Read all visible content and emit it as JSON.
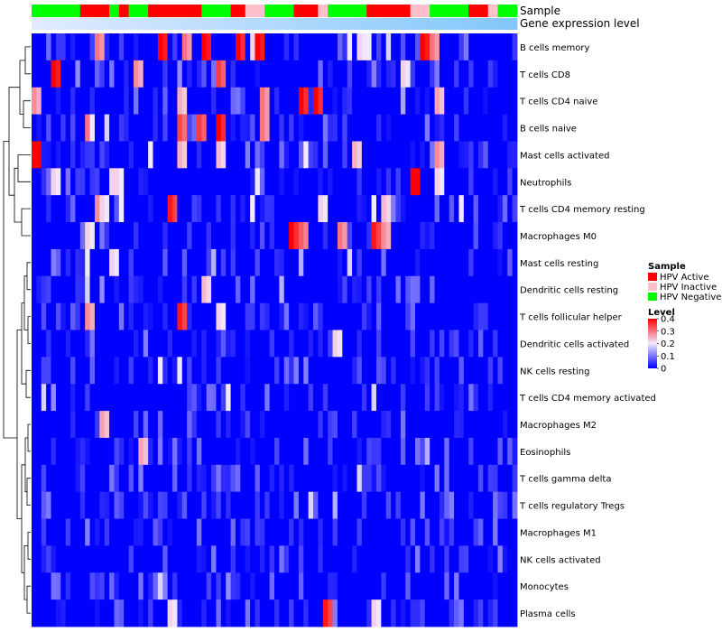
{
  "chart_data": {
    "type": "heatmap",
    "title": "",
    "annotations": {
      "sample_label": "Sample",
      "expression_label": "Gene expression level"
    },
    "sample_groups": [
      "N",
      "N",
      "N",
      "N",
      "N",
      "N",
      "N",
      "N",
      "N",
      "N",
      "A",
      "A",
      "A",
      "A",
      "A",
      "A",
      "N",
      "N",
      "A",
      "A",
      "N",
      "N",
      "N",
      "N",
      "A",
      "A",
      "A",
      "A",
      "A",
      "A",
      "A",
      "A",
      "A",
      "A",
      "A",
      "N",
      "N",
      "N",
      "N",
      "N",
      "N",
      "A",
      "A",
      "A",
      "I",
      "I",
      "I",
      "I",
      "N",
      "N",
      "N",
      "N",
      "N",
      "N",
      "A",
      "A",
      "A",
      "A",
      "A",
      "I",
      "I",
      "N",
      "N",
      "N",
      "N",
      "N",
      "N",
      "N",
      "N",
      "A",
      "A",
      "A",
      "A",
      "A",
      "A",
      "A",
      "A",
      "A",
      "I",
      "I",
      "I",
      "I",
      "N",
      "N",
      "N",
      "N",
      "N",
      "N",
      "N",
      "N",
      "A",
      "A",
      "A",
      "A",
      "I",
      "I",
      "N",
      "N",
      "N",
      "N"
    ],
    "group_colors": {
      "HPV Active": "#ff0000",
      "HPV Inactive": "#ffc0cb",
      "HPV Negative": "#00ff00"
    },
    "group_codes": {
      "A": "HPV Active",
      "I": "HPV Inactive",
      "N": "HPV Negative"
    },
    "rows": [
      "B cells memory",
      "T cells CD8",
      "T cells CD4 naive",
      "B cells naive",
      "Mast cells activated",
      "Neutrophils",
      "T cells CD4 memory resting",
      "Macrophages M0",
      "Mast cells resting",
      "Dendritic cells resting",
      "T cells follicular helper",
      "Dendritic cells activated",
      "NK cells resting",
      "T cells CD4 memory activated",
      "Macrophages M2",
      "Eosinophils",
      "T cells gamma delta",
      "T cells regulatory  Tregs",
      "Macrophages M1",
      "NK cells activated",
      "Monocytes",
      "Plasma cells"
    ],
    "hot_cells": [
      [
        0,
        13,
        0.3
      ],
      [
        0,
        26,
        0.42
      ],
      [
        0,
        31,
        0.3
      ],
      [
        0,
        35,
        0.42
      ],
      [
        0,
        42,
        0.4
      ],
      [
        0,
        45,
        0.22
      ],
      [
        0,
        46,
        0.42
      ],
      [
        0,
        65,
        0.2
      ],
      [
        0,
        67,
        0.22
      ],
      [
        0,
        69,
        0.2
      ],
      [
        0,
        73,
        0.18
      ],
      [
        0,
        80,
        0.42
      ],
      [
        0,
        82,
        0.3
      ],
      [
        0,
        76,
        0.07
      ],
      [
        1,
        4,
        0.42
      ],
      [
        1,
        9,
        0.12
      ],
      [
        1,
        16,
        0.1
      ],
      [
        1,
        21,
        0.28
      ],
      [
        1,
        30,
        0.12
      ],
      [
        1,
        38,
        0.35
      ],
      [
        1,
        76,
        0.22
      ],
      [
        2,
        0,
        0.28
      ],
      [
        2,
        30,
        0.25
      ],
      [
        2,
        42,
        0.1
      ],
      [
        2,
        47,
        0.3
      ],
      [
        2,
        55,
        0.4
      ],
      [
        2,
        58,
        0.4
      ],
      [
        2,
        76,
        0.14
      ],
      [
        2,
        83,
        0.26
      ],
      [
        3,
        11,
        0.3
      ],
      [
        3,
        12,
        0.2
      ],
      [
        3,
        15,
        0.18
      ],
      [
        3,
        30,
        0.34
      ],
      [
        3,
        34,
        0.35
      ],
      [
        3,
        38,
        0.4
      ],
      [
        3,
        47,
        0.3
      ],
      [
        4,
        0,
        0.45
      ],
      [
        4,
        30,
        0.25
      ],
      [
        4,
        38,
        0.24
      ],
      [
        4,
        24,
        0.2
      ],
      [
        4,
        56,
        0.2
      ],
      [
        4,
        66,
        0.25
      ],
      [
        4,
        83,
        0.28
      ],
      [
        5,
        4,
        0.22
      ],
      [
        5,
        16,
        0.22
      ],
      [
        5,
        17,
        0.22
      ],
      [
        5,
        46,
        0.2
      ],
      [
        5,
        78,
        0.45
      ],
      [
        5,
        83,
        0.22
      ],
      [
        6,
        13,
        0.28
      ],
      [
        6,
        14,
        0.22
      ],
      [
        6,
        18,
        0.2
      ],
      [
        6,
        28,
        0.38
      ],
      [
        6,
        45,
        0.2
      ],
      [
        6,
        59,
        0.22
      ],
      [
        6,
        70,
        0.2
      ],
      [
        6,
        72,
        0.24
      ],
      [
        6,
        88,
        0.2
      ],
      [
        7,
        11,
        0.22
      ],
      [
        7,
        14,
        0.1
      ],
      [
        7,
        53,
        0.4
      ],
      [
        7,
        55,
        0.32
      ],
      [
        7,
        63,
        0.3
      ],
      [
        7,
        70,
        0.38
      ],
      [
        7,
        72,
        0.28
      ],
      [
        8,
        11,
        0.2
      ],
      [
        8,
        16,
        0.22
      ],
      [
        8,
        37,
        0.15
      ],
      [
        8,
        55,
        0.15
      ],
      [
        8,
        65,
        0.18
      ],
      [
        9,
        11,
        0.18
      ],
      [
        9,
        14,
        0.12
      ],
      [
        9,
        35,
        0.24
      ],
      [
        9,
        51,
        0.15
      ],
      [
        10,
        11,
        0.28
      ],
      [
        10,
        30,
        0.38
      ],
      [
        10,
        38,
        0.22
      ],
      [
        11,
        62,
        0.22
      ],
      [
        12,
        26,
        0.2
      ],
      [
        12,
        30,
        0.2
      ],
      [
        13,
        2,
        0.18
      ],
      [
        13,
        4,
        0.12
      ],
      [
        13,
        40,
        0.2
      ],
      [
        13,
        70,
        0.18
      ],
      [
        14,
        14,
        0.26
      ],
      [
        14,
        76,
        0.1
      ],
      [
        15,
        22,
        0.26
      ],
      [
        15,
        81,
        0.15
      ],
      [
        16,
        16,
        0.1
      ],
      [
        16,
        67,
        0.18
      ],
      [
        17,
        57,
        0.18
      ],
      [
        17,
        62,
        0.15
      ],
      [
        18,
        34,
        0.1
      ],
      [
        19,
        52,
        0.05
      ],
      [
        20,
        26,
        0.18
      ],
      [
        20,
        40,
        0.12
      ],
      [
        21,
        28,
        0.22
      ],
      [
        21,
        44,
        0.1
      ],
      [
        21,
        60,
        0.38
      ],
      [
        21,
        70,
        0.22
      ]
    ],
    "dendrogram_order": "rows as listed",
    "legend": {
      "sample_title": "Sample",
      "sample_entries": [
        "HPV Active",
        "HPV Inactive",
        "HPV Negative"
      ],
      "level_title": "Level",
      "level_ticks": [
        "0.4",
        "0.3",
        "0.2",
        "0.1",
        "0"
      ],
      "level_range": [
        0,
        0.4
      ]
    }
  }
}
